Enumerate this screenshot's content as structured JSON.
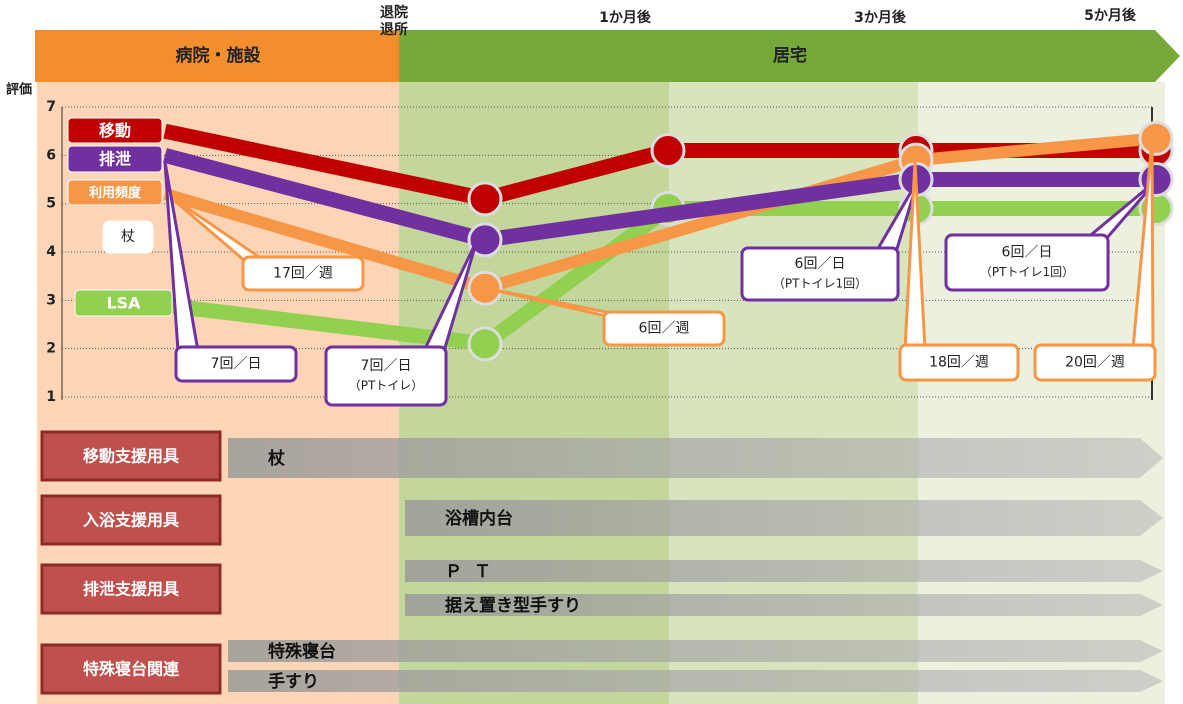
{
  "timeline": {
    "phases": [
      "病院・施設",
      "居宅"
    ],
    "milestones": [
      "退院",
      "退所",
      "1か月後",
      "3か月後",
      "5か月後"
    ]
  },
  "chart_data": {
    "type": "line",
    "ylabel": "評価",
    "categories": [
      null,
      null,
      null,
      null,
      null
    ],
    "series": [
      {
        "name": "LSA",
        "color": "#92d050",
        "values": [
          2.9,
          2.1,
          4.9,
          4.9,
          4.9
        ]
      },
      {
        "name": "移動",
        "color": "#c00000",
        "values": [
          6.5,
          5.1,
          6.1,
          6.1,
          6.1
        ]
      },
      {
        "name": "利用頻度",
        "color": "#f79646",
        "values": [
          5.2,
          3.25,
          null,
          5.9,
          6.35
        ]
      },
      {
        "name": "排泄",
        "color": "#7030a0",
        "values": [
          6.0,
          4.25,
          null,
          5.5,
          5.5
        ]
      }
    ],
    "ylim": [
      1,
      7
    ],
    "yticks": [
      1,
      2,
      3,
      4,
      5,
      6,
      7
    ],
    "grid": true,
    "annotations": [
      {
        "lines": [
          "杖"
        ]
      },
      {
        "lines": [
          "17回／週"
        ],
        "color": "#f79646"
      },
      {
        "lines": [
          "7回／日"
        ],
        "color": "#7030a0"
      },
      {
        "lines": [
          "7回／日",
          "（PTトイレ）"
        ],
        "color": "#7030a0"
      },
      {
        "lines": [
          "6回／週"
        ],
        "color": "#f79646"
      },
      {
        "lines": [
          "6回／日",
          "（PTトイレ1回）"
        ],
        "color": "#7030a0"
      },
      {
        "lines": [
          "18回／週"
        ],
        "color": "#f79646"
      },
      {
        "lines": [
          "6回／日",
          "（PTトイレ1回）"
        ],
        "color": "#7030a0"
      },
      {
        "lines": [
          "20回／週"
        ],
        "color": "#f79646"
      }
    ]
  },
  "equipment": [
    {
      "category": "移動支援用具",
      "items": [
        "杖"
      ]
    },
    {
      "category": "入浴支援用具",
      "items": [
        "浴槽内台"
      ]
    },
    {
      "category": "排泄支援用具",
      "items": [
        "ＰＴ",
        "据え置き型手すり"
      ]
    },
    {
      "category": "特殊寝台関連",
      "items": [
        "特殊寝台",
        "手すり"
      ]
    }
  ]
}
